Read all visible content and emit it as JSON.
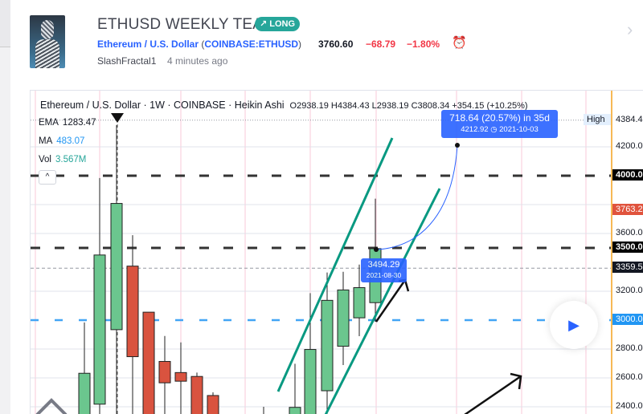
{
  "idea": {
    "title": "ETHUSD WEEKLY TEAR",
    "badge": "↗ LONG",
    "symbol_name": "Ethereum / U.S. Dollar",
    "symbol_paren_open": " (",
    "symbol_code": "COINBASE:ETHUSD",
    "symbol_paren_close": ")",
    "price": "3760.60",
    "change": "−68.79",
    "change_pct": "−1.80%",
    "author": "SlashFractal1",
    "time_ago": "4 minutes ago",
    "alarm_icon": "⏰",
    "next_icon": "›"
  },
  "chart": {
    "legend": "Ethereum / U.S. Dollar · 1W · COINBASE · Heikin Ashi",
    "ohlc": "O2938.19 H4384.43 L2938.19 C3808.34 +354.15 (+10.25%)",
    "indicators": [
      {
        "name": "EMA",
        "value": "1283.47",
        "color": "#131722"
      },
      {
        "name": "MA",
        "value": "483.07",
        "color": "#2196f3"
      },
      {
        "name": "Vol",
        "value": "3.567M",
        "color": "#26a69a"
      }
    ],
    "collapse_icon": "^",
    "tooltip_target": {
      "line1": "718.64 (20.57%) in 35d",
      "line2": "4212.92 ◷ 2021-10-03"
    },
    "tooltip_point": {
      "line1": "3494.29",
      "line2": "2021-08-30"
    },
    "axis_labels": [
      {
        "text": "4384.43",
        "price": 4384.43,
        "bg": "#ffffff",
        "fg": "#131722",
        "tag": "High"
      },
      {
        "text": "4200.00",
        "price": 4200,
        "bg": "",
        "fg": "#131722"
      },
      {
        "text": "4000.00",
        "price": 4000,
        "bg": "#000000",
        "fg": "#ffffff"
      },
      {
        "text": "3763.20",
        "price": 3763.2,
        "bg": "#e0533d",
        "fg": "#ffffff"
      },
      {
        "text": "3600.00",
        "price": 3600,
        "bg": "",
        "fg": "#131722"
      },
      {
        "text": "3500.00",
        "price": 3500,
        "bg": "#000000",
        "fg": "#ffffff"
      },
      {
        "text": "3359.50",
        "price": 3359.5,
        "bg": "#131722",
        "fg": "#ffffff"
      },
      {
        "text": "3200.00",
        "price": 3200,
        "bg": "",
        "fg": "#131722"
      },
      {
        "text": "3000.00",
        "price": 3000,
        "bg": "#2196f3",
        "fg": "#ffffff"
      },
      {
        "text": "2800.00",
        "price": 2800,
        "bg": "",
        "fg": "#131722"
      },
      {
        "text": "2600.00",
        "price": 2600,
        "bg": "",
        "fg": "#131722"
      },
      {
        "text": "2400.00",
        "price": 2400,
        "bg": "",
        "fg": "#131722"
      }
    ],
    "candles": [
      {
        "o": 2300,
        "h": 2984,
        "l": 2300,
        "c": 2632
      },
      {
        "o": 2418,
        "h": 3984,
        "l": 2300,
        "c": 3451
      },
      {
        "o": 2934,
        "h": 4350,
        "l": 2300,
        "c": 3808
      },
      {
        "o": 3374,
        "h": 3588,
        "l": 2300,
        "c": 2747
      },
      {
        "o": 3055,
        "h": 3055,
        "l": 2300,
        "c": 2300
      },
      {
        "o": 2714,
        "h": 2890,
        "l": 2300,
        "c": 2566
      },
      {
        "o": 2637,
        "h": 2846,
        "l": 2300,
        "c": 2577
      },
      {
        "o": 2610,
        "h": 2637,
        "l": 2300,
        "c": 2300
      },
      {
        "o": 2478,
        "h": 2500,
        "l": 2300,
        "c": 2300
      },
      {
        "o": 2300,
        "h": 2330,
        "l": 2300,
        "c": 2300
      },
      {
        "o": 2300,
        "h": 2330,
        "l": 2300,
        "c": 2300
      },
      {
        "o": 2300,
        "h": 2400,
        "l": 2300,
        "c": 2300
      },
      {
        "o": 2300,
        "h": 2698,
        "l": 2300,
        "c": 2396
      },
      {
        "o": 2300,
        "h": 3187,
        "l": 2300,
        "c": 2797
      },
      {
        "o": 2511,
        "h": 3330,
        "l": 2300,
        "c": 3137
      },
      {
        "o": 2819,
        "h": 3335,
        "l": 2800,
        "c": 3209
      },
      {
        "o": 3016,
        "h": 3385,
        "l": 3000,
        "c": 3225
      },
      {
        "o": 3121,
        "h": 3841,
        "l": 3100,
        "c": 3495
      }
    ],
    "colors": {
      "up": "#6bc68e",
      "down": "#d9533f",
      "trend": "#089981",
      "target": "#2962ff"
    },
    "play_icon": "▶"
  }
}
